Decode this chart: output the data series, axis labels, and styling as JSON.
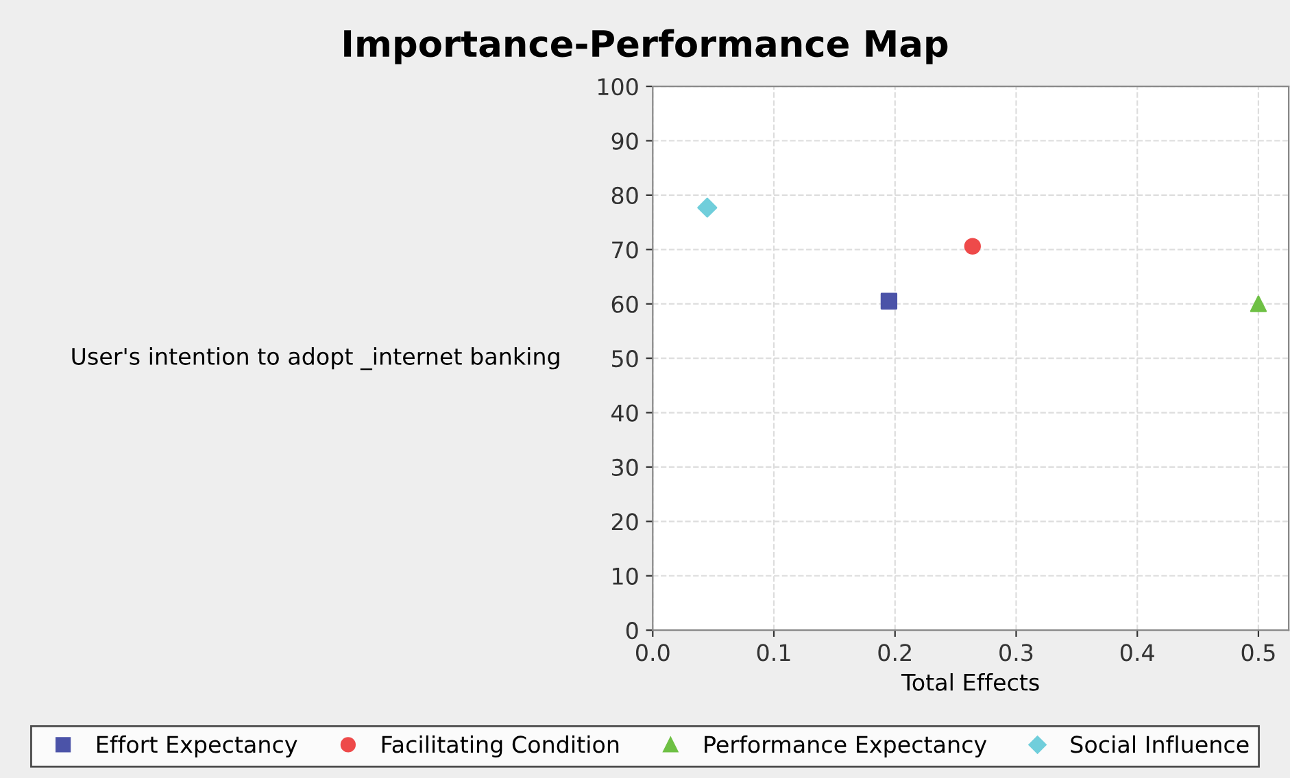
{
  "chart_data": {
    "type": "scatter",
    "title": "Importance-Performance Map",
    "xlabel": "Total Effects",
    "ylabel": "User's intention to adopt _internet banking",
    "series": [
      {
        "name": "Effort Expectancy",
        "color": "#4b53a8",
        "marker": "square",
        "x": [
          0.195
        ],
        "values": [
          60.5
        ]
      },
      {
        "name": "Facilitating Condition",
        "color": "#ee4a4a",
        "marker": "circle",
        "x": [
          0.264
        ],
        "values": [
          70.6
        ]
      },
      {
        "name": "Performance Expectancy",
        "color": "#6ec044",
        "marker": "triangle",
        "x": [
          0.5
        ],
        "values": [
          60.0
        ]
      },
      {
        "name": "Social Influence",
        "color": "#70cedb",
        "marker": "diamond",
        "x": [
          0.045
        ],
        "values": [
          77.7
        ]
      }
    ],
    "xlim": [
      0,
      0.525
    ],
    "xticks": [
      {
        "value": 0,
        "label": "0.0"
      },
      0.1,
      0.2,
      0.3,
      0.4,
      0.5
    ],
    "ylim": [
      0,
      100
    ],
    "yticks": [
      0,
      10,
      20,
      30,
      40,
      50,
      60,
      70,
      80,
      90,
      100
    ],
    "grid": true,
    "legend": "bottom"
  }
}
